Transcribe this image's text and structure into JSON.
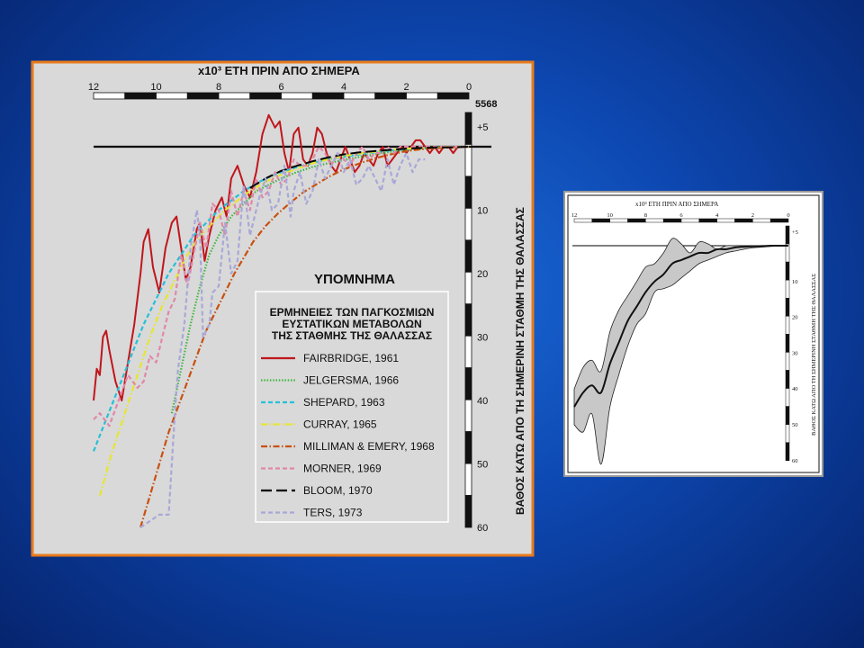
{
  "chart_data": [
    {
      "type": "line",
      "title": "x10³ ΕΤΗ ΠΡΙΝ ΑΠΟ ΣΗΜΕΡΑ",
      "xlabel": "x10³ ΕΤΗ ΠΡΙΝ ΑΠΟ ΣΗΜΕΡΑ",
      "ylabel": "ΒΑΘΟΣ ΚΑΤΩ ΑΠΟ ΤΗ ΣΗΜΕΡΙΝΗ ΣΤΑΘΜΗ ΤΗΣ ΘΑΛΑΣΣΑΣ",
      "xlim": [
        12,
        0
      ],
      "ylim": [
        5,
        -60
      ],
      "x_ticks": [
        "12",
        "10",
        "8",
        "6",
        "4",
        "2",
        "0"
      ],
      "y_ticks": [
        "+5",
        "10",
        "20",
        "30",
        "40",
        "50",
        "60"
      ],
      "top_right_label": "5568",
      "legend": {
        "heading": "ΥΠΟΜΝΗΜΑ",
        "subtitle_lines": [
          "ΕΡΜΗΝΕΙΕΣ ΤΩΝ ΠΑΓΚΟΣΜΙΩΝ",
          "ΕΥΣΤΑΤΙΚΩΝ ΜΕΤΑΒΟΛΩΝ",
          "ΤΗΣ ΣΤΑΘΜΗΣ ΤΗΣ ΘΑΛΑΣΣΑΣ"
        ]
      },
      "series": [
        {
          "name": "FAIRBRIDGE, 1961",
          "color": "#c0161c",
          "style": "solid",
          "x": [
            12.0,
            11.9,
            11.8,
            11.7,
            11.6,
            11.5,
            11.3,
            11.1,
            10.9,
            10.7,
            10.5,
            10.4,
            10.25,
            10.1,
            9.9,
            9.7,
            9.5,
            9.35,
            9.2,
            9.05,
            8.9,
            8.7,
            8.6,
            8.45,
            8.3,
            8.1,
            7.9,
            7.75,
            7.6,
            7.4,
            7.2,
            7.0,
            6.8,
            6.6,
            6.4,
            6.2,
            6.05,
            5.9,
            5.75,
            5.6,
            5.45,
            5.3,
            5.15,
            5.0,
            4.85,
            4.7,
            4.55,
            4.4,
            4.25,
            4.1,
            3.95,
            3.8,
            3.65,
            3.5,
            3.35,
            3.2,
            3.05,
            2.9,
            2.75,
            2.6,
            2.45,
            2.3,
            2.15,
            2.0,
            1.85,
            1.7,
            1.55,
            1.4,
            1.25,
            1.1,
            0.95,
            0.8,
            0.65,
            0.5,
            0.35,
            0.2,
            0.0
          ],
          "y": [
            -40,
            -35,
            -36,
            -30,
            -29,
            -32,
            -37,
            -40,
            -34,
            -28,
            -20,
            -15,
            -13,
            -19,
            -23,
            -16,
            -12,
            -11,
            -16,
            -21,
            -19,
            -13,
            -12,
            -18,
            -14,
            -10,
            -8,
            -11,
            -5,
            -3,
            -6,
            -8,
            -4,
            2,
            5,
            3,
            4,
            -1,
            -4,
            2,
            3,
            -2,
            -3,
            -1,
            3,
            2,
            -1,
            -3,
            -4,
            -2,
            0,
            -2,
            -4,
            -3,
            -1,
            -2,
            -3,
            -1,
            0,
            -3,
            -2,
            -1,
            0,
            -1,
            0,
            1,
            1,
            0,
            -1,
            0,
            -1,
            0,
            0,
            -1,
            0,
            0,
            0
          ]
        },
        {
          "name": "JELGERSMA, 1966",
          "color": "#3cb83c",
          "style": "dotted",
          "x": [
            9.5,
            9.2,
            8.9,
            8.6,
            8.3,
            8.0,
            7.6,
            7.2,
            6.8,
            6.4,
            6.0,
            5.5,
            5.0,
            4.5,
            4.0,
            3.5,
            3.0,
            2.5,
            2.0,
            1.5,
            1.0,
            0.5,
            0.0
          ],
          "y": [
            -42,
            -35,
            -28,
            -22,
            -17,
            -14,
            -11,
            -9,
            -7,
            -6,
            -5,
            -4,
            -3.2,
            -2.6,
            -2.1,
            -1.6,
            -1.2,
            -0.8,
            -0.5,
            -0.3,
            -0.2,
            -0.1,
            0
          ]
        },
        {
          "name": "SHEPARD, 1963",
          "color": "#25c0d8",
          "style": "dashed",
          "x": [
            12.0,
            11.6,
            11.2,
            10.8,
            10.4,
            10.0,
            9.6,
            9.2,
            8.8,
            8.4,
            8.0,
            7.6,
            7.2,
            6.8,
            6.4,
            6.0,
            5.5,
            5.0,
            4.5,
            4.0,
            3.5,
            3.0,
            2.5,
            2.0,
            1.5,
            1.0,
            0.5,
            0.0
          ],
          "y": [
            -48,
            -43,
            -38,
            -33,
            -28,
            -24,
            -20,
            -17,
            -14,
            -12,
            -10,
            -8.5,
            -7,
            -5.8,
            -4.8,
            -4,
            -3.2,
            -2.6,
            -2,
            -1.6,
            -1.2,
            -0.9,
            -0.6,
            -0.4,
            -0.2,
            -0.1,
            0,
            0
          ]
        },
        {
          "name": "CURRAY, 1965",
          "color": "#e6e632",
          "style": "dashdot",
          "x": [
            11.8,
            11.4,
            11.0,
            10.6,
            10.2,
            9.8,
            9.4,
            9.0,
            8.6,
            8.2,
            7.8,
            7.4,
            7.0,
            6.6,
            6.2,
            5.8,
            5.4,
            5.0,
            4.6,
            4.2,
            3.8,
            3.4,
            3.0,
            2.5,
            2.0,
            1.5,
            1.0,
            0.5,
            0.0
          ],
          "y": [
            -55,
            -48,
            -42,
            -36,
            -30,
            -25,
            -21,
            -17,
            -14,
            -12,
            -10,
            -8.5,
            -7,
            -5.8,
            -4.8,
            -4,
            -3.3,
            -2.6,
            -2.1,
            -1.7,
            -1.3,
            -1,
            -0.8,
            -0.5,
            -0.3,
            -0.2,
            -0.1,
            0,
            0
          ]
        },
        {
          "name": "MILLIMAN & EMERY, 1968",
          "color": "#c85010",
          "style": "dashdot",
          "x": [
            10.5,
            10.2,
            9.9,
            9.6,
            9.3,
            9.0,
            8.7,
            8.4,
            8.1,
            7.8,
            7.5,
            7.2,
            6.9,
            6.5,
            6.1,
            5.7,
            5.3,
            4.9,
            4.5,
            4.1,
            3.7,
            3.3,
            2.9,
            2.5,
            2.1,
            1.7,
            1.3,
            0.9,
            0.5,
            0.0
          ],
          "y": [
            -60,
            -55,
            -50,
            -45,
            -41,
            -37,
            -33,
            -29,
            -26,
            -23,
            -20,
            -17.5,
            -15,
            -12.5,
            -10.5,
            -8.8,
            -7.2,
            -6,
            -4.8,
            -3.8,
            -3,
            -2.3,
            -1.7,
            -1.2,
            -0.8,
            -0.5,
            -0.3,
            -0.2,
            -0.1,
            0
          ]
        },
        {
          "name": "MORNER, 1969",
          "color": "#e088a8",
          "style": "dashed",
          "x": [
            12.0,
            11.8,
            11.5,
            11.2,
            10.9,
            10.6,
            10.4,
            10.2,
            10.0,
            9.8,
            9.6,
            9.4,
            9.2,
            9.0,
            8.8,
            8.6,
            8.4,
            8.2,
            8.0,
            7.8,
            7.6,
            7.4,
            7.2,
            7.0,
            6.8,
            6.6,
            6.4,
            6.2,
            6.0,
            5.8,
            5.6,
            5.4,
            5.2,
            5.0,
            4.8,
            4.6,
            4.4,
            4.2,
            4.0,
            3.8,
            3.6,
            3.4,
            3.2,
            3.0,
            2.8,
            2.6,
            2.4,
            2.2,
            2.0,
            1.8,
            1.5,
            1.2,
            0.9,
            0.6,
            0.3,
            0.0
          ],
          "y": [
            -43,
            -42,
            -44,
            -40,
            -36,
            -38,
            -37,
            -33,
            -34,
            -30,
            -26,
            -24,
            -17,
            -22,
            -17,
            -12,
            -16,
            -9,
            -10,
            -14,
            -7,
            -11,
            -7,
            -10,
            -5,
            -8,
            -7,
            -4,
            -6,
            -5,
            -2,
            -3,
            -3,
            -2,
            0,
            -1,
            -3,
            -1,
            -2,
            -3,
            -1,
            0,
            -2,
            -1,
            -1,
            0,
            -1,
            0,
            0,
            0,
            0,
            0,
            0,
            0,
            0,
            0
          ]
        },
        {
          "name": "BLOOM, 1970",
          "color": "#000000",
          "style": "longdash",
          "x": [
            7.0,
            6.5,
            6.0,
            5.5,
            5.0,
            4.5,
            4.0,
            3.5,
            3.0,
            2.5,
            2.0,
            1.5,
            1.0,
            0.5,
            0.0
          ],
          "y": [
            -6.5,
            -5,
            -3.8,
            -3,
            -2.3,
            -1.7,
            -1.2,
            -0.9,
            -0.7,
            -0.5,
            -0.3,
            -0.2,
            -0.1,
            -0.1,
            0
          ]
        },
        {
          "name": "TERS, 1973",
          "color": "#a8a8d8",
          "style": "dashed",
          "x": [
            10.5,
            10.2,
            9.9,
            9.6,
            9.5,
            9.4,
            9.3,
            9.1,
            8.9,
            8.7,
            8.6,
            8.5,
            8.3,
            8.2,
            8.0,
            7.8,
            7.6,
            7.4,
            7.2,
            7.0,
            6.9,
            6.7,
            6.5,
            6.3,
            6.1,
            5.9,
            5.7,
            5.6,
            5.4,
            5.2,
            5.0,
            4.8,
            4.6,
            4.4,
            4.2,
            4.0,
            3.8,
            3.6,
            3.4,
            3.2,
            3.0,
            2.8,
            2.6,
            2.4,
            2.2,
            2.0,
            1.8,
            1.6,
            1.4
          ],
          "y": [
            -60,
            -59,
            -58,
            -58,
            -50,
            -42,
            -35,
            -28,
            -16,
            -10,
            -14,
            -30,
            -28,
            -23,
            -22,
            -12,
            -20,
            -18,
            -6,
            -14,
            -12,
            -8,
            -5,
            -10,
            -9,
            -3,
            -11,
            -7,
            -4,
            -9,
            -7,
            -2,
            -5,
            -3,
            -1,
            -4,
            -2,
            -6,
            -5,
            -3,
            -5,
            -7,
            -2,
            -6,
            -3,
            -1,
            -4,
            -2,
            -2
          ]
        }
      ]
    },
    {
      "type": "area",
      "title": "x10³ ΕΤΗ ΠΡΙΝ ΑΠΟ ΣΗΜΕΡΑ",
      "xlabel": "x10³ ΕΤΗ ΠΡΙΝ ΑΠΟ ΣΗΜΕΡΑ",
      "ylabel": "ΒΑΘΟΣ ΚΑΤΩ ΑΠΟ ΤΗ ΣΗΜΕΡΙΝΗ ΣΤΑΘΜΗ ΤΗΣ ΘΑΛΑΣΣΑΣ",
      "xlim": [
        12,
        0
      ],
      "ylim": [
        5,
        -60
      ],
      "x_ticks": [
        "12",
        "10",
        "8",
        "6",
        "4",
        "2",
        "0"
      ],
      "y_ticks": [
        "+5",
        "10",
        "20",
        "30",
        "40",
        "50",
        "60"
      ],
      "x": [
        12.0,
        11.5,
        11.0,
        10.5,
        10.0,
        9.5,
        9.0,
        8.5,
        8.0,
        7.5,
        7.0,
        6.5,
        6.0,
        5.5,
        5.0,
        4.5,
        4.0,
        3.5,
        3.0,
        2.5,
        2.0,
        1.5,
        1.0,
        0.5,
        0.0
      ],
      "mean": [
        -45,
        -41,
        -39,
        -41,
        -33,
        -27,
        -21,
        -17,
        -13,
        -10,
        -8,
        -5,
        -4,
        -3,
        -2,
        -2,
        -1,
        -1,
        -0.5,
        -0.3,
        -0.2,
        -0.1,
        0,
        0,
        0
      ],
      "upper": [
        -40,
        -34,
        -32,
        -35,
        -24,
        -18,
        -14,
        -10,
        -6,
        -5,
        -2,
        2,
        0.5,
        -2,
        1,
        0.5,
        -1,
        0,
        0,
        0,
        0,
        0,
        0,
        0,
        0
      ],
      "lower": [
        -50,
        -52,
        -47,
        -61,
        -45,
        -36,
        -28,
        -22,
        -19,
        -13,
        -12,
        -11,
        -9,
        -7,
        -5,
        -4,
        -3,
        -2,
        -1.5,
        -1,
        -0.6,
        -0.4,
        -0.2,
        -0.1,
        0
      ]
    }
  ]
}
